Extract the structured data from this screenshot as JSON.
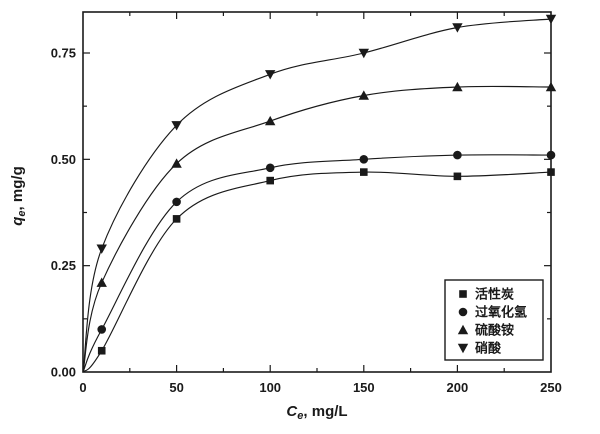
{
  "chart_data": {
    "type": "scatter-line",
    "title": "",
    "xlabel": {
      "symbol": "C",
      "subscript": "e",
      "suffix": ", mg/L"
    },
    "ylabel": {
      "symbol": "q",
      "subscript": "e",
      "suffix": ", mg/g"
    },
    "x_axis": {
      "range": [
        0,
        250
      ],
      "major_ticks": [
        0,
        50,
        100,
        150,
        200,
        250
      ],
      "minor_step": 25
    },
    "y_axis": {
      "range": [
        0,
        0.85
      ],
      "major_ticks": [
        0,
        0.25,
        0.5,
        0.75
      ],
      "minor_step": 0.125,
      "decimals": 2
    },
    "x": [
      10,
      50,
      100,
      150,
      200,
      250
    ],
    "series": [
      {
        "name": "活性炭",
        "marker": "square",
        "values": [
          0.05,
          0.36,
          0.45,
          0.47,
          0.46,
          0.47
        ]
      },
      {
        "name": "过氧化氢",
        "marker": "circle",
        "values": [
          0.1,
          0.4,
          0.48,
          0.5,
          0.51,
          0.51
        ]
      },
      {
        "name": "硫酸铵",
        "marker": "triangle-up",
        "values": [
          0.21,
          0.49,
          0.59,
          0.65,
          0.67,
          0.67
        ]
      },
      {
        "name": "硝酸",
        "marker": "triangle-down",
        "values": [
          0.29,
          0.58,
          0.7,
          0.75,
          0.81,
          0.83
        ]
      }
    ],
    "legend": {
      "position": "bottom-right",
      "entries": [
        "活性炭",
        "过氧化氢",
        "硫酸铵",
        "硝酸"
      ]
    },
    "grid": false,
    "colors": {
      "ink": "#1a1a1a",
      "background": "#ffffff"
    }
  }
}
